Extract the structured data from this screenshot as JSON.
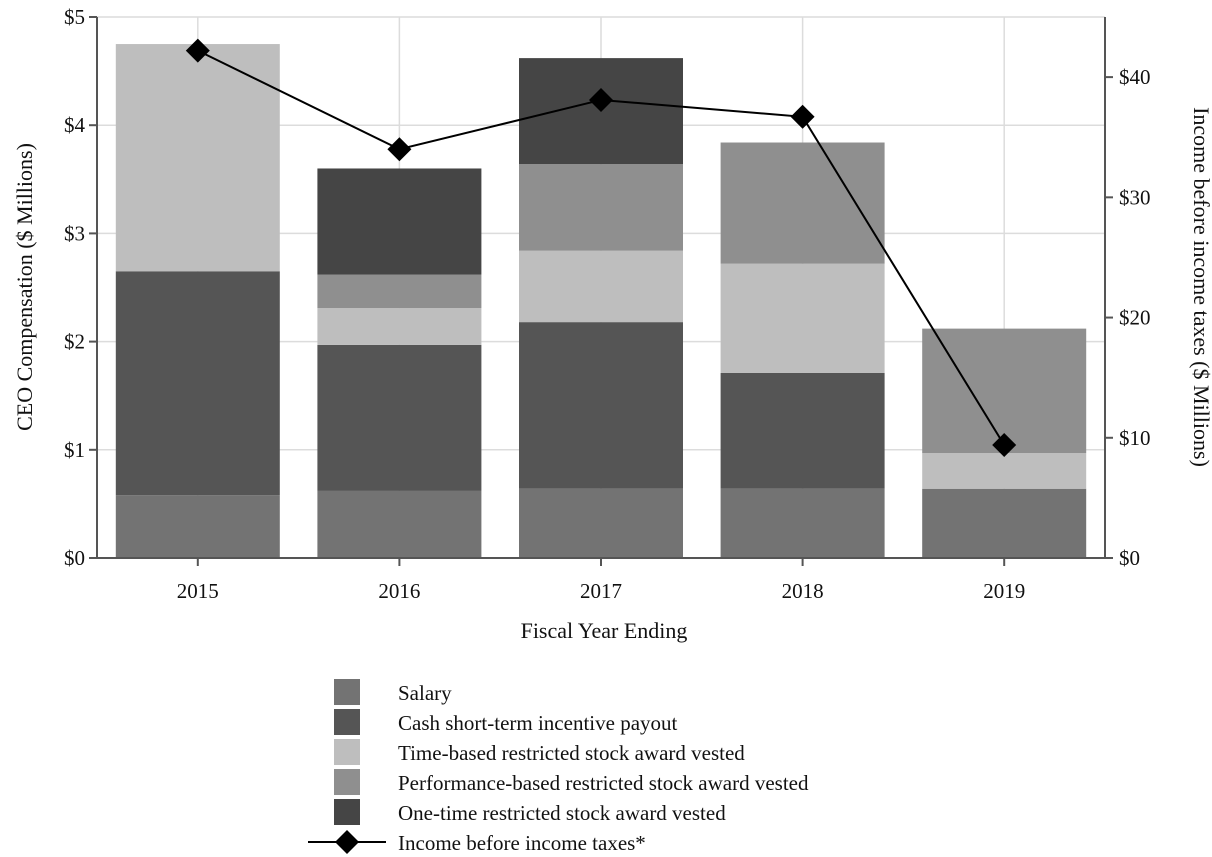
{
  "chart_data": {
    "type": "bar",
    "stacked": true,
    "categories": [
      "2015",
      "2016",
      "2017",
      "2018",
      "2019"
    ],
    "xlabel": "Fiscal Year Ending",
    "ylabel": "CEO Compensation ($ Millions)",
    "ylim": [
      0,
      5
    ],
    "yticks": [
      "$0",
      "$1",
      "$2",
      "$3",
      "$4",
      "$5"
    ],
    "y2label": "Income before income taxes ($ Millions)",
    "y2lim": [
      0,
      45
    ],
    "y2ticks": [
      "$0",
      "$10",
      "$20",
      "$30",
      "$40"
    ],
    "grid": true,
    "legend_position": "bottom",
    "series": [
      {
        "name": "Salary",
        "color": "#737373",
        "values": [
          0.58,
          0.62,
          0.64,
          0.64,
          0.64
        ]
      },
      {
        "name": "Cash short-term incentive payout",
        "color": "#555555",
        "values": [
          2.07,
          1.35,
          1.54,
          1.07,
          0
        ]
      },
      {
        "name": "Time-based restricted stock award vested",
        "color": "#bebebe",
        "values": [
          2.1,
          0.34,
          0.66,
          1.01,
          0.33
        ]
      },
      {
        "name": "Performance-based restricted stock award vested",
        "color": "#8f8f8f",
        "values": [
          0,
          0.31,
          0.8,
          1.12,
          1.15
        ]
      },
      {
        "name": "One-time restricted stock award vested",
        "color": "#454545",
        "values": [
          0,
          0.98,
          0.98,
          0,
          0
        ]
      }
    ],
    "line_series": {
      "name": "Income before income taxes*",
      "axis": "right",
      "marker": "diamond",
      "color": "#000000",
      "values": [
        42.2,
        34.0,
        38.1,
        36.7,
        9.4
      ]
    }
  }
}
